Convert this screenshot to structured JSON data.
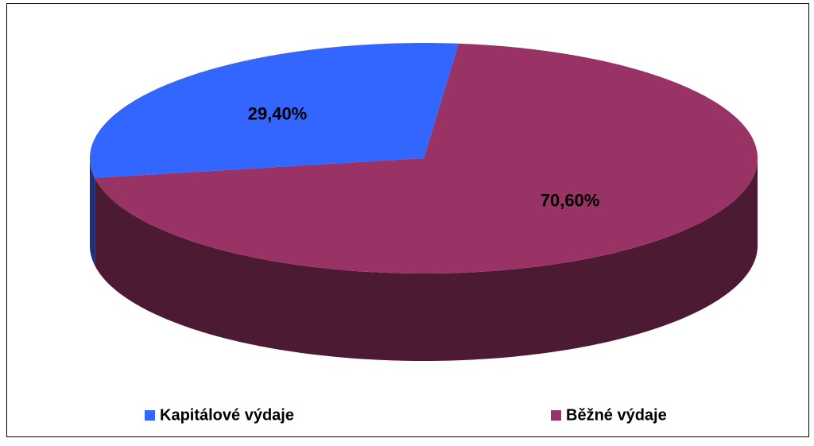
{
  "chart_data": {
    "type": "pie",
    "categories": [
      "Kapitálové výdaje",
      "Běžné výdaje"
    ],
    "values": [
      29.4,
      70.6
    ],
    "value_labels": [
      "29,40%",
      "70,60%"
    ],
    "colors": [
      "#3366ff",
      "#993366"
    ],
    "legend": "bottom"
  }
}
